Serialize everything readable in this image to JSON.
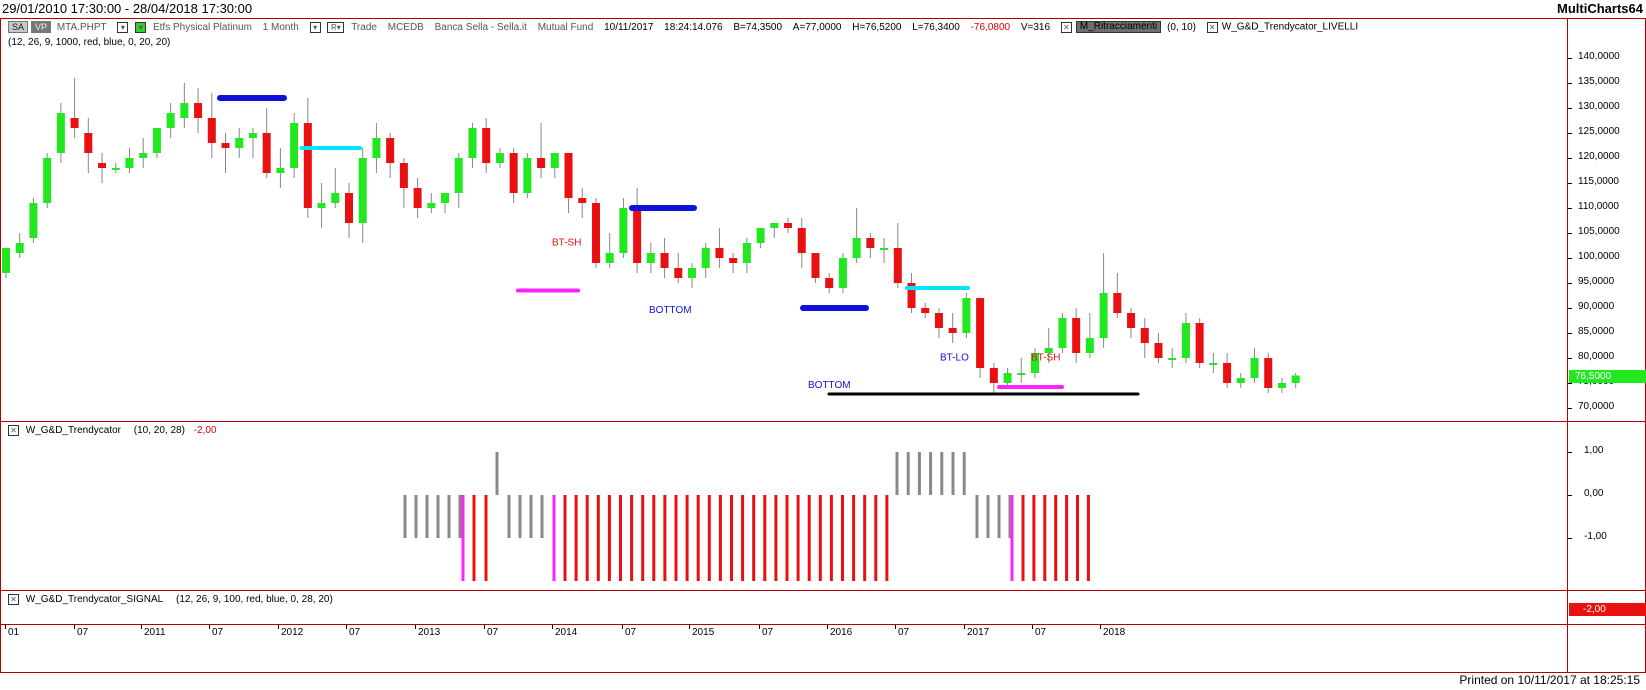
{
  "window": {
    "date_range": "29/01/2010 17:30:00 - 28/04/2018 17:30:00",
    "brand": "MultiCharts64"
  },
  "main_pane": {
    "legend": {
      "btn_sa": "SA",
      "btn_vp": "VP",
      "symbol": "MTA.PHPT",
      "description": "Etfs Physical Platinum",
      "resolution": "1 Month",
      "r_button": "R",
      "data_type": "Trade",
      "exchange": "MCEDB",
      "broker": "Banca Sella - Sella.it",
      "category": "Mutual Fund",
      "date": "10/11/2017",
      "time": "18:24:14.076",
      "bid": "B=74,3500",
      "ask": "A=77,0000",
      "high": "H=76,5200",
      "low": "L=76,3400",
      "change": "-76,0800",
      "volume": "V=316",
      "study1_name": "M_Ritracciamenti",
      "study1_params": "(0, 10)",
      "study2_name": "W_G&D_Trendycator_LIVELLI",
      "study2_params": "(12, 26, 9, 1000, red, blue, 0, 20, 20)"
    },
    "price_axis": [
      "140,0000",
      "135,0000",
      "130,0000",
      "125,0000",
      "120,0000",
      "115,0000",
      "110,0000",
      "105,0000",
      "100,0000",
      "95,0000",
      "90,0000",
      "85,0000",
      "80,0000",
      "75,0000",
      "70,0000"
    ],
    "last_price": "76,5000",
    "annotations": [
      "BT-SH",
      "BOTTOM",
      "BOTTOM",
      "BT-LO",
      "BT-SH"
    ],
    "colors": {
      "up": "#22e822",
      "down": "#e81010",
      "level_blue": "#1010dd",
      "level_cyan": "#00e5ff",
      "level_magenta": "#ff22ff",
      "level_black": "#000000"
    }
  },
  "indicator_pane": {
    "legend_name": "W_G&D_Trendycator",
    "legend_params": "(10, 20, 28)",
    "legend_value": "-2,00",
    "axis": [
      "1,00",
      "0,00",
      "-1,00"
    ],
    "last_value": "-2,00"
  },
  "signal_pane": {
    "legend_name": "W_G&D_Trendycator_SIGNAL",
    "legend_params": "(12, 26, 9, 100, red, blue, 0, 28, 20)"
  },
  "time_axis": [
    "01",
    "07",
    "2011",
    "07",
    "2012",
    "07",
    "2013",
    "07",
    "2014",
    "07",
    "2015",
    "07",
    "2016",
    "07",
    "2017",
    "07",
    "2018"
  ],
  "status": {
    "printed_on": "Printed on 10/11/2017 at 18:25:15"
  }
}
